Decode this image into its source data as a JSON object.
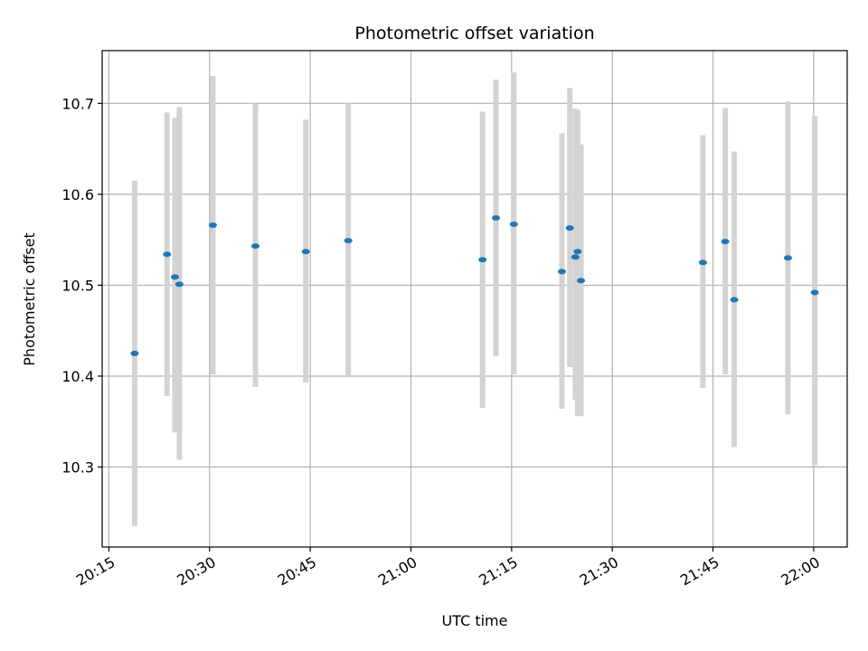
{
  "chart_data": {
    "type": "scatter",
    "title": "Photometric offset variation",
    "xlabel": "UTC time",
    "ylabel": "Photometric offset",
    "grid": true,
    "xlim": [
      "20:14",
      "22:05"
    ],
    "ylim": [
      10.212,
      10.758
    ],
    "x_ticks": [
      "20:15",
      "20:30",
      "20:45",
      "21:00",
      "21:15",
      "21:30",
      "21:45",
      "22:00"
    ],
    "y_ticks": [
      "10.3",
      "10.4",
      "10.5",
      "10.6",
      "10.7"
    ],
    "x": [
      "20:18:50",
      "20:23:40",
      "20:24:50",
      "20:25:30",
      "20:30:30",
      "20:36:50",
      "20:44:20",
      "20:50:40",
      "21:10:40",
      "21:12:40",
      "21:15:20",
      "21:22:30",
      "21:23:40",
      "21:24:30",
      "21:24:50",
      "21:25:20",
      "21:43:30",
      "21:46:50",
      "21:48:10",
      "21:56:10",
      "22:00:10"
    ],
    "y": [
      10.425,
      10.534,
      10.509,
      10.501,
      10.566,
      10.543,
      10.537,
      10.549,
      10.528,
      10.574,
      10.567,
      10.515,
      10.563,
      10.531,
      10.537,
      10.505,
      10.525,
      10.548,
      10.484,
      10.53,
      10.492
    ],
    "y_low": [
      10.235,
      10.378,
      10.338,
      10.308,
      10.402,
      10.388,
      10.393,
      10.4,
      10.365,
      10.422,
      10.402,
      10.364,
      10.41,
      10.374,
      10.356,
      10.356,
      10.387,
      10.402,
      10.322,
      10.358,
      10.302
    ],
    "y_high": [
      10.615,
      10.69,
      10.684,
      10.696,
      10.73,
      10.7,
      10.682,
      10.7,
      10.691,
      10.726,
      10.734,
      10.667,
      10.717,
      10.694,
      10.693,
      10.655,
      10.665,
      10.695,
      10.647,
      10.702,
      10.686
    ],
    "point_color": "#1f77b4",
    "errorbar_color": "#d3d3d3"
  }
}
